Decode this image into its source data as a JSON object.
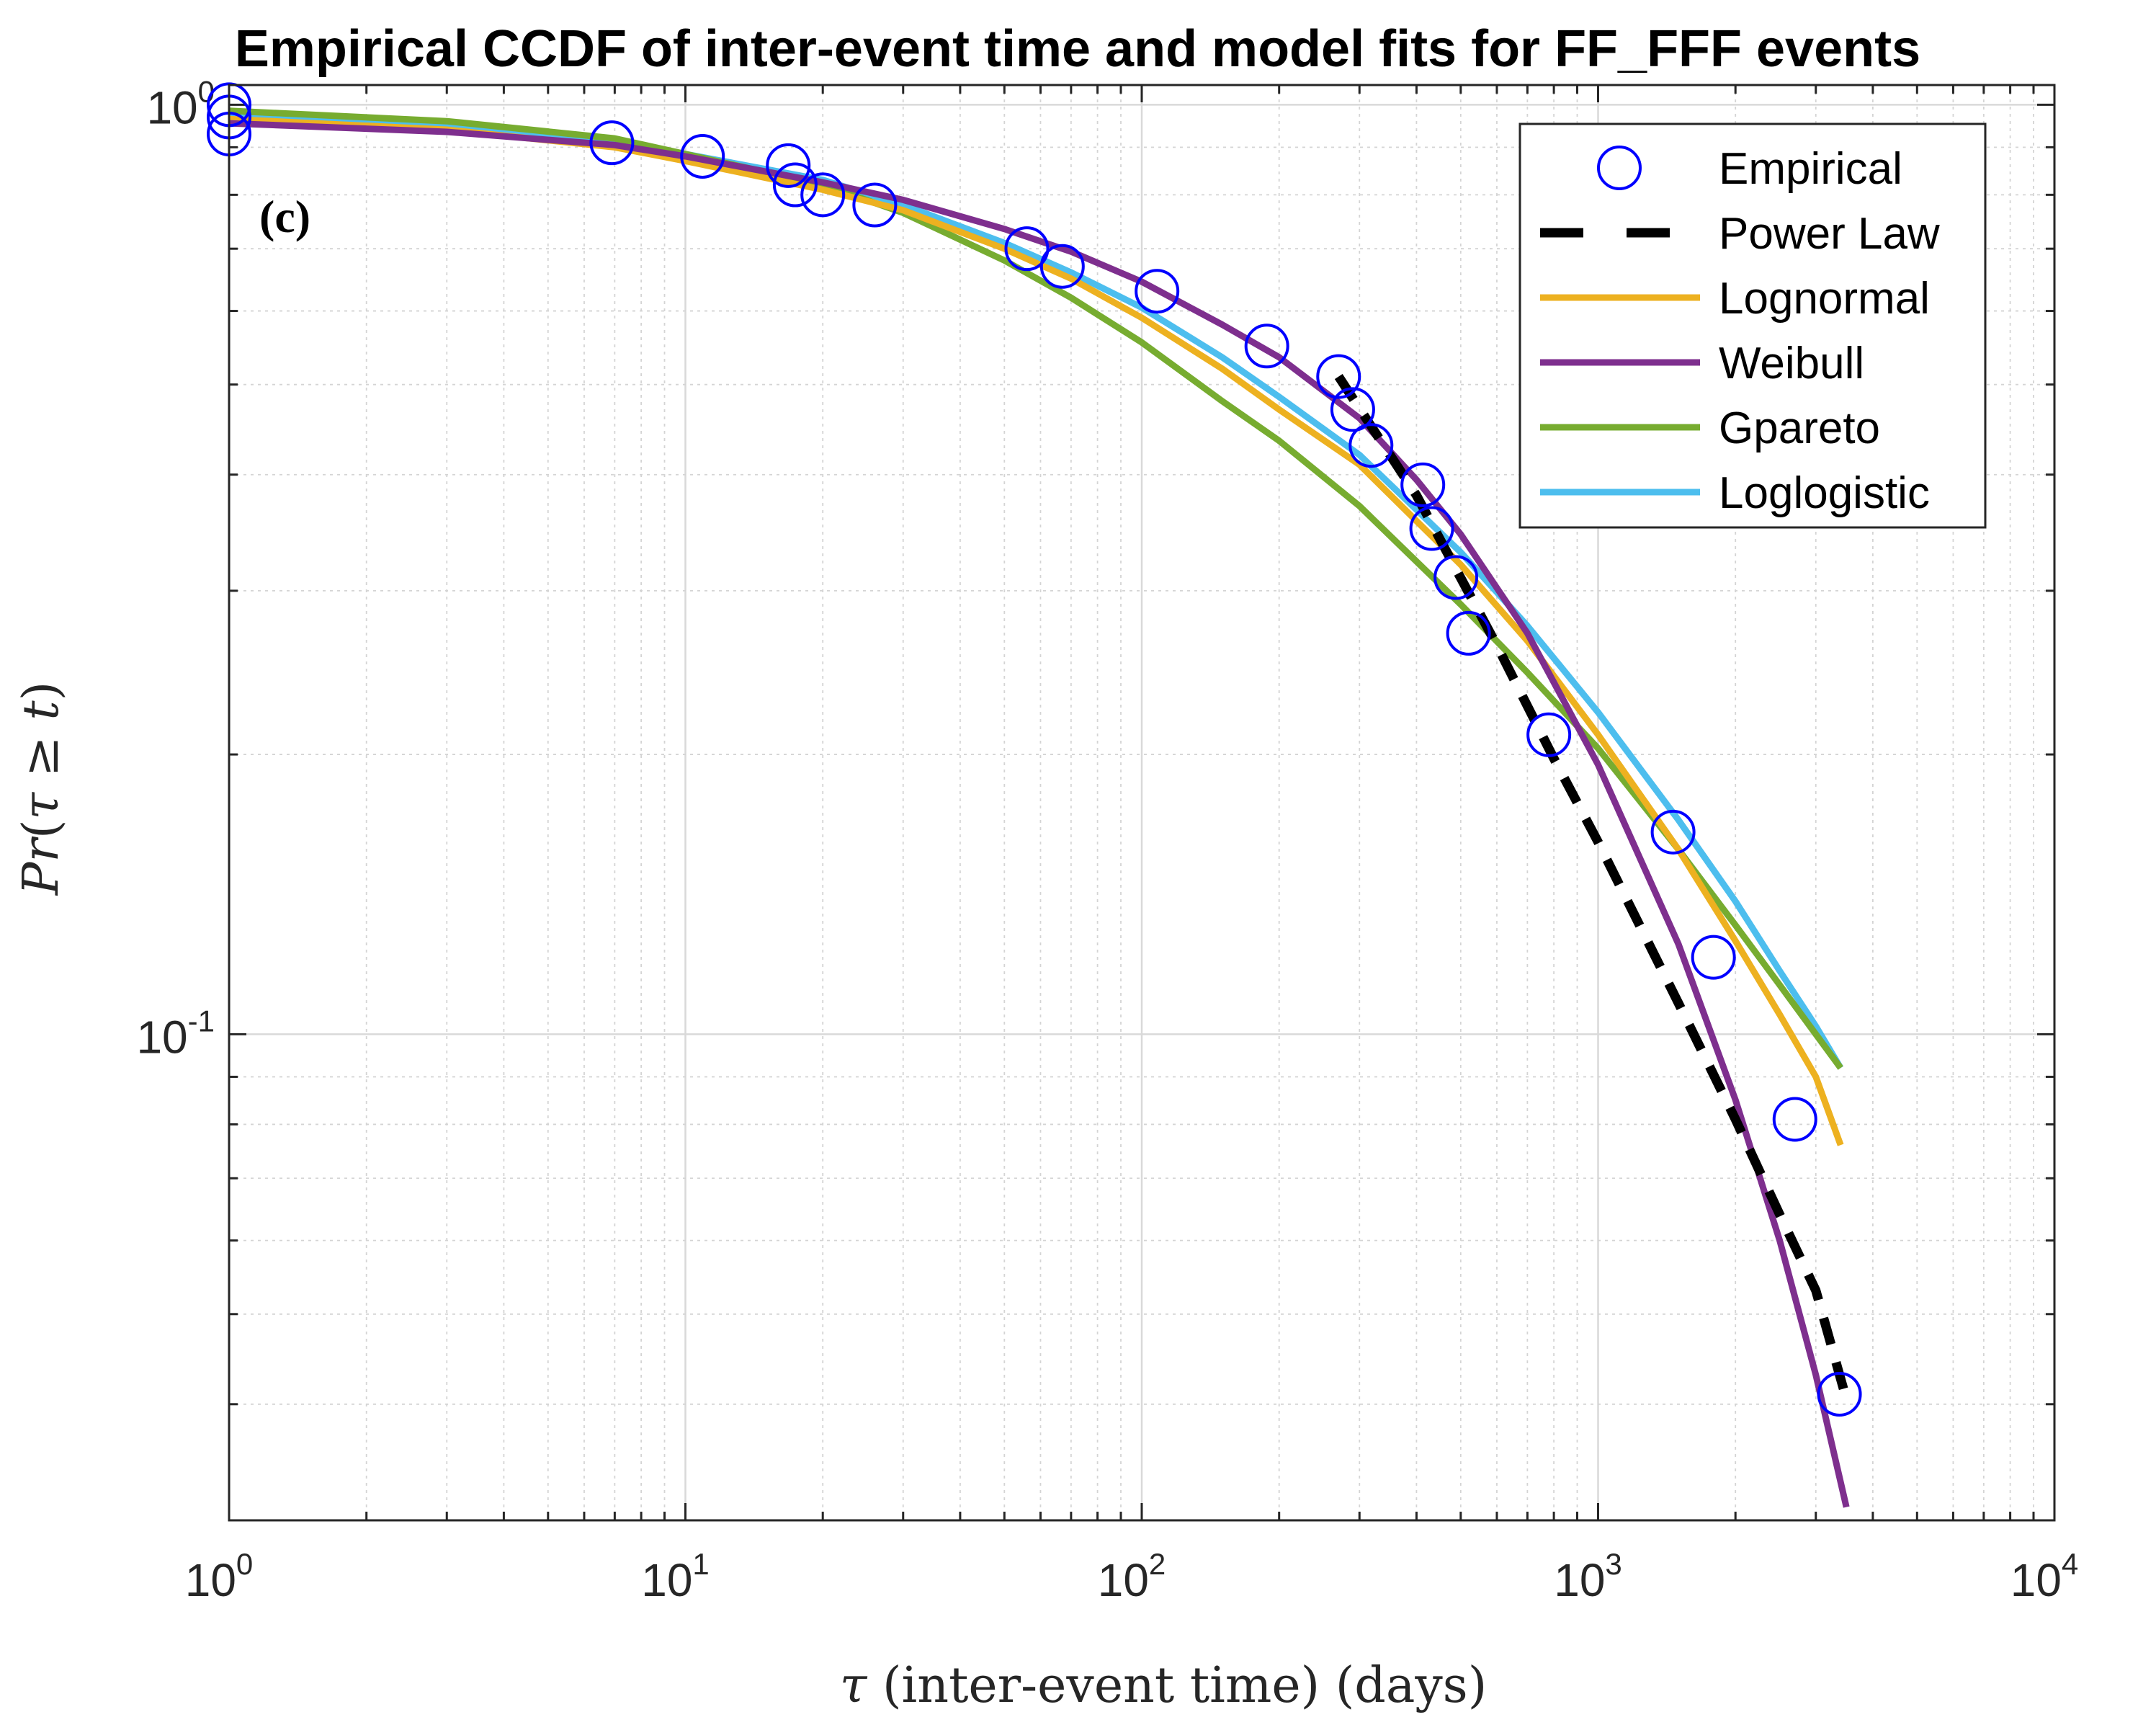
{
  "chart_data": {
    "type": "line",
    "title": "Empirical CCDF of inter-event time and model fits for FF_FFF events",
    "panel_label": "(c)",
    "xlabel": "τ (inter-event time) (days)",
    "ylabel": "Pr(τ ≥ t)",
    "xscale": "log",
    "yscale": "log",
    "xlim": [
      1,
      10000
    ],
    "ylim": [
      0.03,
      1.05
    ],
    "grid": true,
    "minor_grid": true,
    "legend_position": "top-right",
    "x_ticks": [
      {
        "value": 1,
        "base": "10",
        "exp": "0"
      },
      {
        "value": 10,
        "base": "10",
        "exp": "1"
      },
      {
        "value": 100,
        "base": "10",
        "exp": "2"
      },
      {
        "value": 1000,
        "base": "10",
        "exp": "3"
      },
      {
        "value": 10000,
        "base": "10",
        "exp": "4"
      }
    ],
    "y_ticks": [
      {
        "value": 0.1,
        "base": "10",
        "exp": "-1"
      },
      {
        "value": 1,
        "base": "10",
        "exp": "0"
      }
    ],
    "series": [
      {
        "name": "Empirical",
        "kind": "markers",
        "color": "#0000FF",
        "x": [
          1,
          1,
          1,
          6.9,
          10.9,
          16.8,
          17.4,
          20,
          26,
          56,
          67,
          108,
          188,
          270,
          290,
          318,
          413,
          432,
          488,
          520,
          780,
          1460,
          1790,
          2700,
          3380
        ],
        "y": [
          1.0,
          0.97,
          0.93,
          0.91,
          0.88,
          0.86,
          0.82,
          0.8,
          0.78,
          0.7,
          0.67,
          0.63,
          0.55,
          0.51,
          0.47,
          0.43,
          0.39,
          0.35,
          0.31,
          0.27,
          0.21,
          0.165,
          0.121,
          0.081,
          0.041
        ]
      },
      {
        "name": "Power Law",
        "kind": "dashed",
        "color": "#000000",
        "x": [
          270,
          400,
          600,
          800,
          1000,
          1500,
          2000,
          2500,
          3000,
          3500
        ],
        "y": [
          0.51,
          0.38,
          0.262,
          0.198,
          0.161,
          0.108,
          0.081,
          0.064,
          0.053,
          0.0405
        ]
      },
      {
        "name": "Lognormal",
        "kind": "line",
        "color": "#EDB120",
        "x": [
          1,
          3,
          7,
          10,
          20,
          30,
          50,
          70,
          100,
          150,
          200,
          300,
          500,
          700,
          1000,
          1500,
          2000,
          2500,
          3000,
          3400
        ],
        "y": [
          0.965,
          0.94,
          0.9,
          0.87,
          0.81,
          0.77,
          0.7,
          0.65,
          0.59,
          0.52,
          0.47,
          0.41,
          0.32,
          0.265,
          0.21,
          0.158,
          0.126,
          0.105,
          0.09,
          0.076
        ]
      },
      {
        "name": "Weibull",
        "kind": "line",
        "color": "#7E2F8E",
        "x": [
          1,
          3,
          7,
          10,
          20,
          30,
          50,
          70,
          100,
          150,
          200,
          300,
          400,
          500,
          700,
          1000,
          1500,
          2000,
          2500,
          3000,
          3500
        ],
        "y": [
          0.955,
          0.935,
          0.905,
          0.88,
          0.825,
          0.79,
          0.735,
          0.695,
          0.645,
          0.58,
          0.535,
          0.46,
          0.395,
          0.345,
          0.27,
          0.195,
          0.125,
          0.085,
          0.06,
          0.043,
          0.031
        ]
      },
      {
        "name": "Gpareto",
        "kind": "line",
        "color": "#77AC30",
        "x": [
          1,
          3,
          7,
          10,
          20,
          30,
          50,
          70,
          100,
          150,
          200,
          300,
          500,
          700,
          1000,
          1500,
          2000,
          2500,
          3000,
          3400
        ],
        "y": [
          0.985,
          0.96,
          0.92,
          0.885,
          0.82,
          0.765,
          0.68,
          0.62,
          0.555,
          0.48,
          0.435,
          0.37,
          0.29,
          0.245,
          0.203,
          0.158,
          0.131,
          0.113,
          0.1,
          0.092
        ]
      },
      {
        "name": "Loglogistic",
        "kind": "line",
        "color": "#4DBEEE",
        "x": [
          1,
          3,
          7,
          10,
          20,
          30,
          50,
          70,
          100,
          150,
          200,
          300,
          500,
          700,
          1000,
          1500,
          2000,
          2500,
          3000,
          3400
        ],
        "y": [
          0.975,
          0.95,
          0.915,
          0.885,
          0.83,
          0.78,
          0.71,
          0.66,
          0.605,
          0.535,
          0.485,
          0.42,
          0.33,
          0.275,
          0.222,
          0.17,
          0.139,
          0.117,
          0.102,
          0.092
        ]
      }
    ]
  }
}
